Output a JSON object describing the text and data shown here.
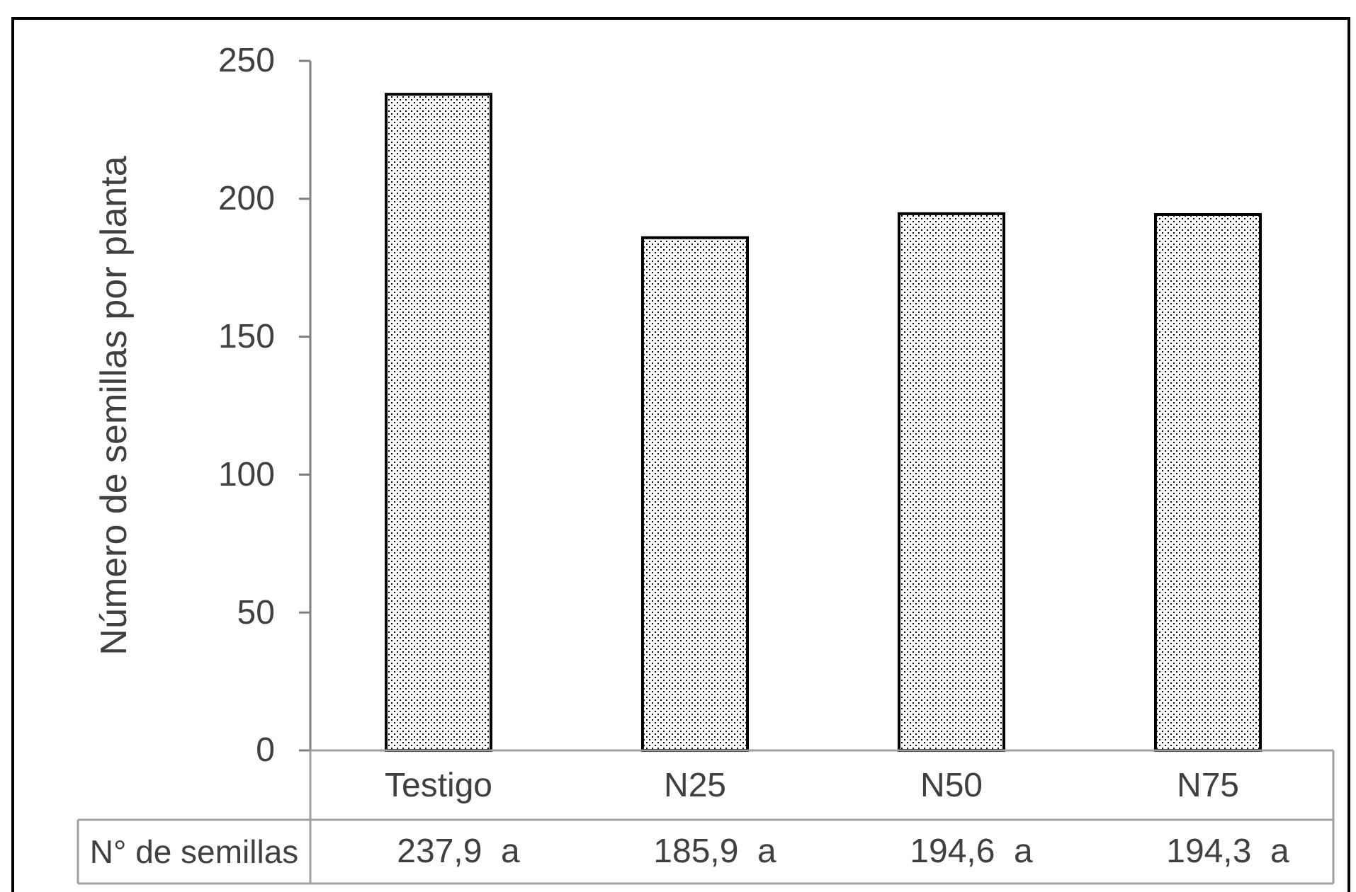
{
  "chart_data": {
    "type": "bar",
    "ylabel": "Número de semillas por planta",
    "categories": [
      "Testigo",
      "N25",
      "N50",
      "N75"
    ],
    "series": [
      {
        "name": "N° de semillas",
        "color": "#000000",
        "values": [
          237.9,
          185.9,
          194.6,
          194.3
        ],
        "value_labels": [
          "237,9  a",
          "185,9  a",
          "194,6  a",
          "194,3  a"
        ]
      }
    ],
    "ylim": [
      0,
      250
    ],
    "yticks": [
      0,
      50,
      100,
      150,
      200,
      250
    ]
  }
}
